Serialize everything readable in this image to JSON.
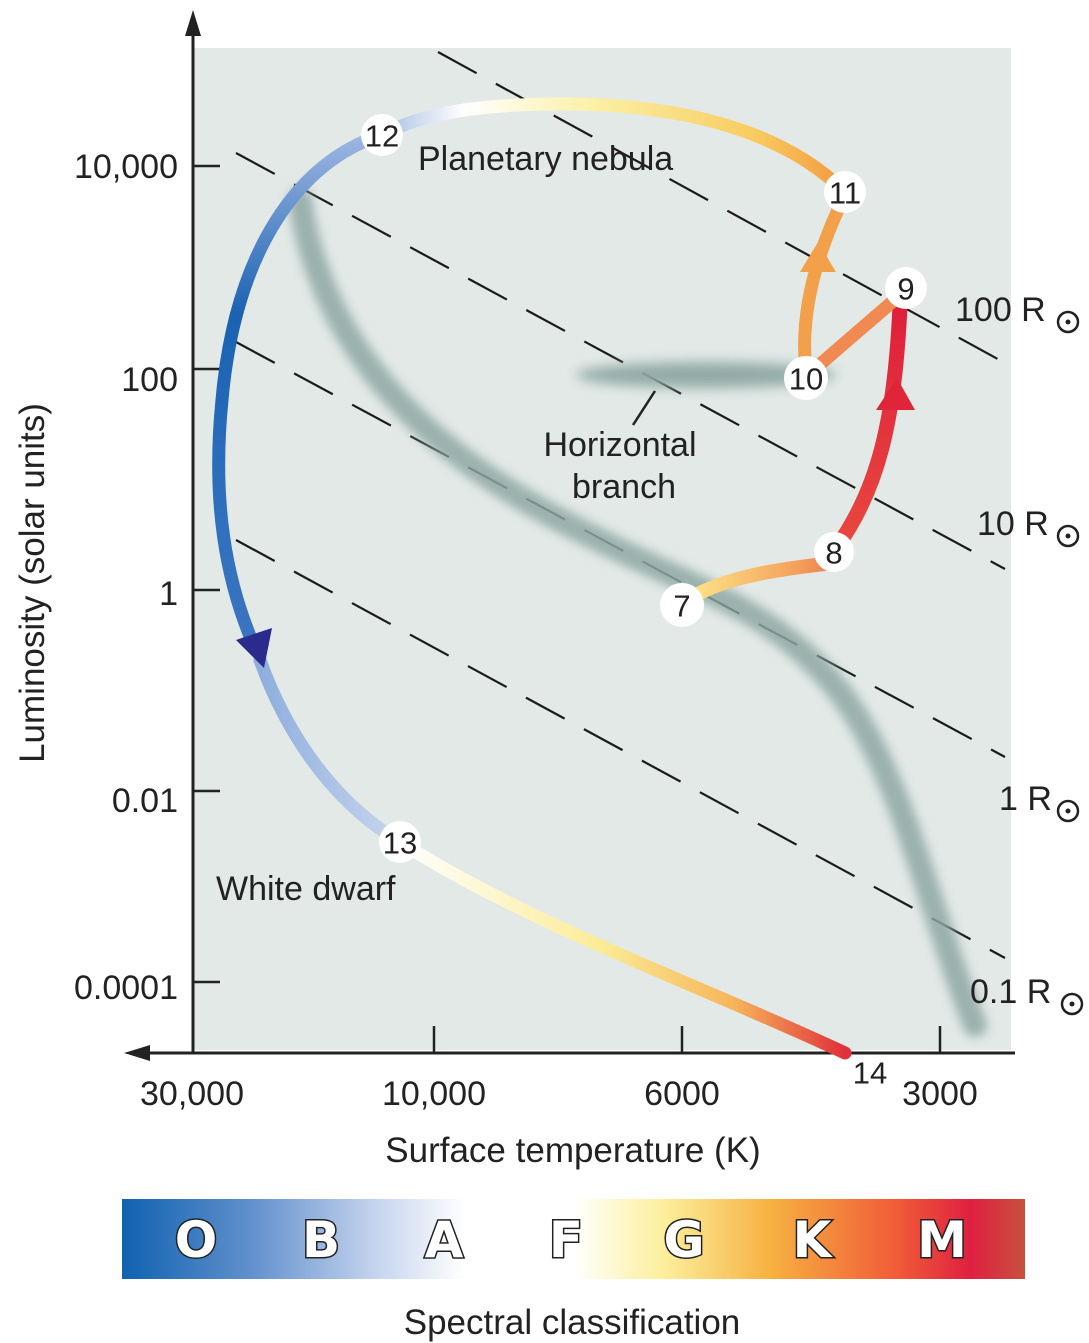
{
  "chart_data": {
    "type": "diagram",
    "x_axis": {
      "title": "Surface temperature (K)",
      "scale": "log",
      "direction": "decreasing",
      "ticks": [
        {
          "value": 30000,
          "label": "30,000"
        },
        {
          "value": 10000,
          "label": "10,000"
        },
        {
          "value": 6000,
          "label": "6000"
        },
        {
          "value": 3000,
          "label": "3000"
        }
      ]
    },
    "y_axis": {
      "title": "Luminosity (solar units)",
      "scale": "log",
      "ticks": [
        {
          "value": 10000,
          "label": "10,000"
        },
        {
          "value": 100,
          "label": "100"
        },
        {
          "value": 1,
          "label": "1"
        },
        {
          "value": 0.01,
          "label": "0.01"
        },
        {
          "value": 0.0001,
          "label": "0.0001"
        }
      ]
    },
    "stages": [
      {
        "label": "7",
        "temperature_K": 5600,
        "luminosity": 0.9
      },
      {
        "label": "8",
        "temperature_K": 4000,
        "luminosity": 2.5
      },
      {
        "label": "9",
        "temperature_K": 3500,
        "luminosity": 800
      },
      {
        "label": "10",
        "temperature_K": 4050,
        "luminosity": 100
      },
      {
        "label": "11",
        "temperature_K": 3900,
        "luminosity": 4500
      },
      {
        "label": "12",
        "temperature_K": 13000,
        "luminosity": 11500
      },
      {
        "label": "13",
        "temperature_K": 11500,
        "luminosity": 0.0045
      },
      {
        "label": "14",
        "temperature_K": 3700,
        "luminosity": 3e-05
      }
    ],
    "annotations": {
      "planetary_nebula": "Planetary nebula",
      "horizontal_branch_line1": "Horizontal",
      "horizontal_branch_line2": "branch",
      "white_dwarf": "White dwarf"
    },
    "radius_lines": [
      {
        "label": "100 R",
        "solar_radii": 100
      },
      {
        "label": "10 R",
        "solar_radii": 10
      },
      {
        "label": "1 R",
        "solar_radii": 1
      },
      {
        "label": "0.1 R",
        "solar_radii": 0.1
      }
    ],
    "spectral_classification": {
      "title": "Spectral classification",
      "classes": [
        "O",
        "B",
        "A",
        "F",
        "G",
        "K",
        "M"
      ]
    },
    "colors": {
      "plot_background": "#e2e9e7",
      "main_sequence_band": "#8fa8a4",
      "hot_blue": "#1761b0",
      "cool_red": "#d83030",
      "arrow_dark_blue": "#2a2b8c"
    }
  }
}
